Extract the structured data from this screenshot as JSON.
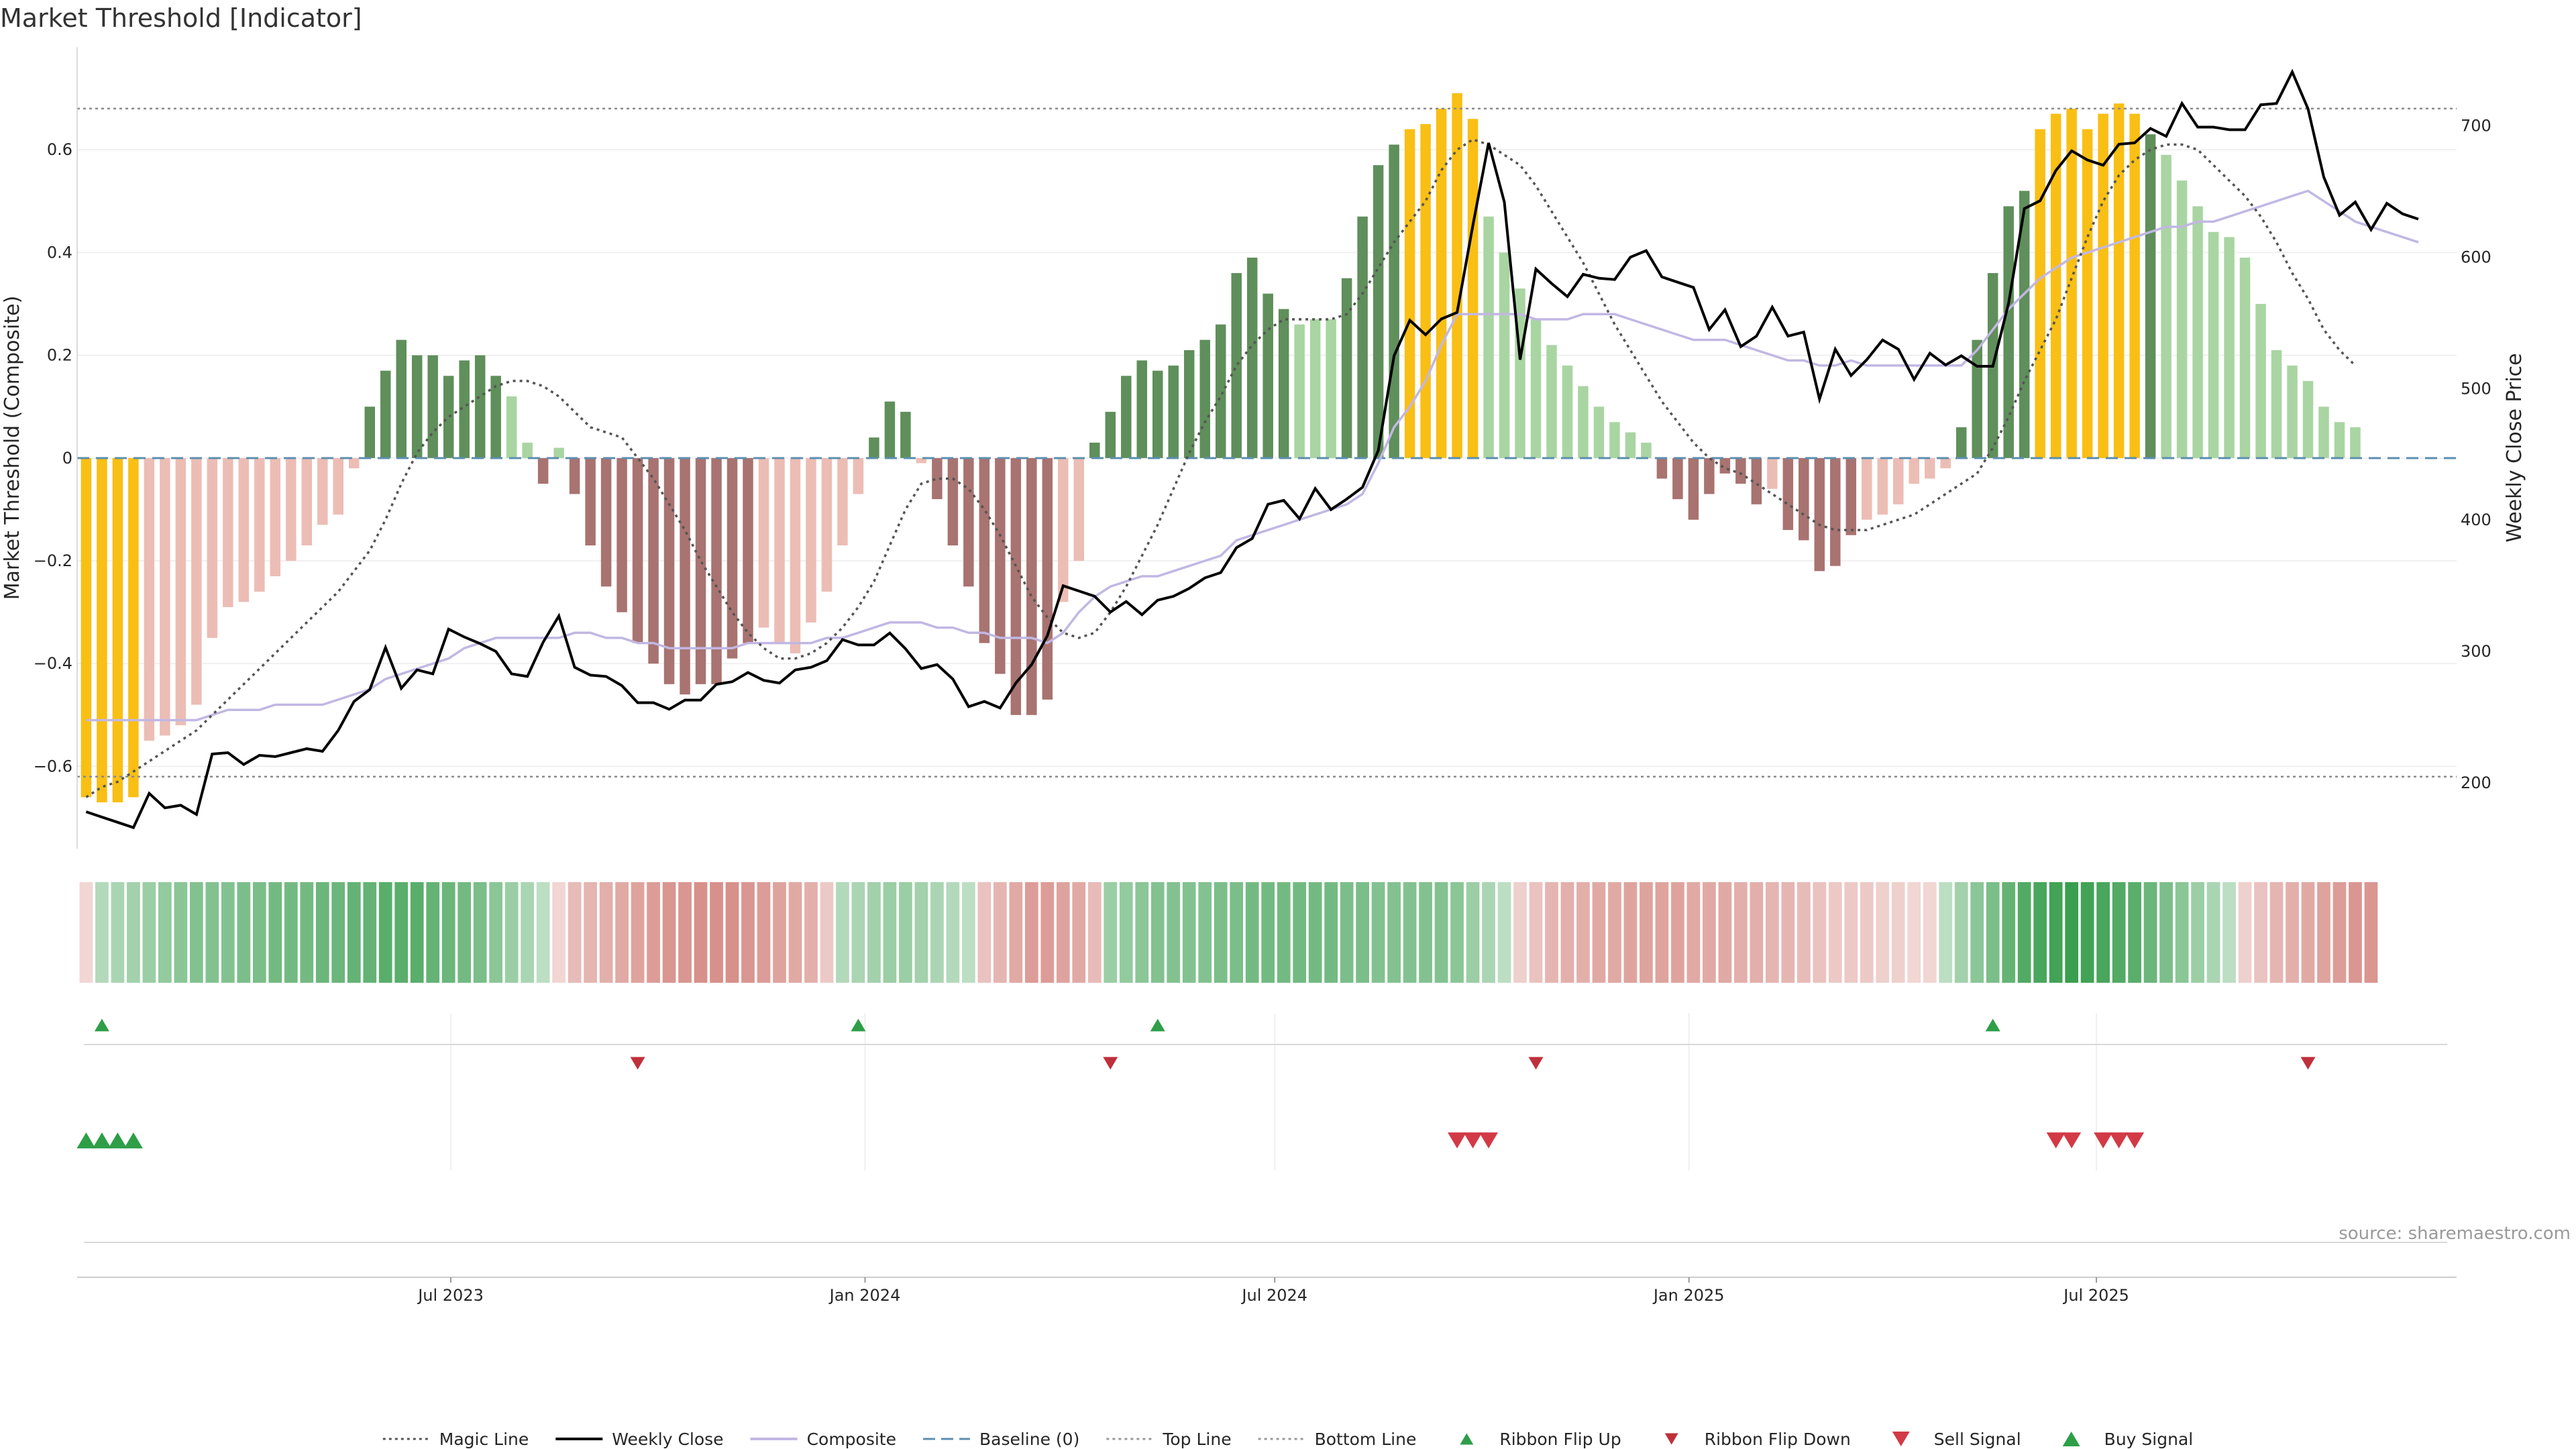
{
  "chart_data": {
    "type": "bar",
    "title": "Market Threshold [Indicator]",
    "ylabel": "Market Threshold (Composite)",
    "ylabel_right": "Weekly Close Price",
    "ylim": [
      -0.76,
      0.8
    ],
    "ylim_right": [
      150,
      760
    ],
    "yticks": [
      -0.6,
      -0.4,
      -0.2,
      0,
      0.2,
      0.4,
      0.6
    ],
    "yticks_right": [
      200,
      300,
      400,
      500,
      600,
      700
    ],
    "xlim": [
      "2023-01-16",
      "2025-12-08"
    ],
    "x_ticks": [
      {
        "date": "2023-07-01",
        "label": "Jul 2023"
      },
      {
        "date": "2024-01-01",
        "label": "Jan 2024"
      },
      {
        "date": "2024-07-01",
        "label": "Jul 2024"
      },
      {
        "date": "2025-01-01",
        "label": "Jan 2025"
      },
      {
        "date": "2025-07-01",
        "label": "Jul 2025"
      }
    ],
    "top_line": 0.68,
    "bottom_line": -0.62,
    "baseline": 0,
    "start_date": "2023-01-20",
    "composite": [
      -0.66,
      -0.67,
      -0.67,
      -0.66,
      -0.55,
      -0.54,
      -0.52,
      -0.48,
      -0.35,
      -0.29,
      -0.28,
      -0.26,
      -0.23,
      -0.2,
      -0.17,
      -0.13,
      -0.11,
      -0.02,
      0.1,
      0.17,
      0.23,
      0.2,
      0.2,
      0.16,
      0.19,
      0.2,
      0.16,
      0.12,
      0.03,
      -0.05,
      0.02,
      -0.07,
      -0.17,
      -0.25,
      -0.3,
      -0.36,
      -0.4,
      -0.44,
      -0.46,
      -0.44,
      -0.44,
      -0.39,
      -0.36,
      -0.33,
      -0.36,
      -0.38,
      -0.32,
      -0.26,
      -0.17,
      -0.07,
      0.04,
      0.11,
      0.09,
      -0.01,
      -0.08,
      -0.17,
      -0.25,
      -0.36,
      -0.42,
      -0.5,
      -0.5,
      -0.47,
      -0.28,
      -0.2,
      0.03,
      0.09,
      0.16,
      0.19,
      0.17,
      0.18,
      0.21,
      0.23,
      0.26,
      0.36,
      0.39,
      0.32,
      0.29,
      0.26,
      0.27,
      0.27,
      0.35,
      0.47,
      0.57,
      0.61,
      0.64,
      0.65,
      0.68,
      0.71,
      0.66,
      0.47,
      0.4,
      0.33,
      0.27,
      0.22,
      0.18,
      0.14,
      0.1,
      0.07,
      0.05,
      0.03,
      -0.04,
      -0.08,
      -0.12,
      -0.07,
      -0.03,
      -0.05,
      -0.09,
      -0.06,
      -0.14,
      -0.16,
      -0.22,
      -0.21,
      -0.15,
      -0.12,
      -0.11,
      -0.09,
      -0.05,
      -0.04,
      -0.02,
      0.06,
      0.23,
      0.36,
      0.49,
      0.52,
      0.64,
      0.67,
      0.68,
      0.64,
      0.67,
      0.69,
      0.67,
      0.63,
      0.59,
      0.54,
      0.49,
      0.44,
      0.43,
      0.39,
      0.3,
      0.21,
      0.18,
      0.15,
      0.1,
      0.07,
      0.06
    ],
    "composite_colors": {
      "strong_positive": "#5f8f5b",
      "weak_positive": "#a9d5a2",
      "strong_negative": "#a87370",
      "weak_negative": "#ecbdb5",
      "extreme": "#f9bf14"
    },
    "weekly_close": [
      178,
      174,
      170,
      166,
      192,
      181,
      183,
      176,
      222,
      223,
      214,
      221,
      220,
      223,
      226,
      224,
      240,
      262,
      271,
      303,
      272,
      286,
      283,
      317,
      311,
      306,
      300,
      283,
      281,
      307,
      327,
      288,
      282,
      281,
      274,
      261,
      261,
      256,
      263,
      263,
      275,
      277,
      284,
      278,
      276,
      286,
      288,
      293,
      309,
      305,
      305,
      314,
      302,
      287,
      290,
      279,
      258,
      262,
      257,
      276,
      290,
      312,
      350,
      346,
      342,
      330,
      338,
      328,
      339,
      342,
      348,
      356,
      360,
      379,
      386,
      412,
      415,
      401,
      424,
      408,
      416,
      425,
      453,
      525,
      552,
      541,
      553,
      558,
      624,
      687,
      642,
      522,
      591,
      580,
      570,
      587,
      584,
      583,
      600,
      605,
      585,
      581,
      577,
      545,
      560,
      532,
      540,
      562,
      540,
      543,
      492,
      530,
      510,
      522,
      537,
      530,
      507,
      527,
      518,
      525,
      517,
      517,
      565,
      637,
      643,
      666,
      681,
      674,
      670,
      686,
      687,
      698,
      692,
      717,
      699,
      699,
      697,
      697,
      716,
      717,
      741,
      713,
      661,
      632,
      642,
      621,
      641,
      633,
      629
    ],
    "magic_line": [
      -0.66,
      -0.64,
      -0.63,
      -0.61,
      -0.59,
      -0.57,
      -0.55,
      -0.53,
      -0.5,
      -0.47,
      -0.44,
      -0.41,
      -0.38,
      -0.35,
      -0.32,
      -0.29,
      -0.26,
      -0.22,
      -0.18,
      -0.12,
      -0.05,
      0.01,
      0.05,
      0.08,
      0.1,
      0.12,
      0.14,
      0.15,
      0.15,
      0.14,
      0.12,
      0.09,
      0.06,
      0.05,
      0.04,
      0.0,
      -0.04,
      -0.09,
      -0.14,
      -0.2,
      -0.25,
      -0.3,
      -0.34,
      -0.37,
      -0.39,
      -0.39,
      -0.38,
      -0.36,
      -0.33,
      -0.29,
      -0.24,
      -0.17,
      -0.1,
      -0.05,
      -0.04,
      -0.04,
      -0.06,
      -0.1,
      -0.15,
      -0.21,
      -0.27,
      -0.31,
      -0.34,
      -0.35,
      -0.34,
      -0.3,
      -0.25,
      -0.19,
      -0.13,
      -0.06,
      0.01,
      0.07,
      0.12,
      0.18,
      0.22,
      0.25,
      0.27,
      0.27,
      0.27,
      0.27,
      0.28,
      0.32,
      0.37,
      0.42,
      0.46,
      0.5,
      0.56,
      0.6,
      0.62,
      0.61,
      0.59,
      0.57,
      0.53,
      0.48,
      0.43,
      0.38,
      0.32,
      0.26,
      0.21,
      0.16,
      0.11,
      0.07,
      0.03,
      0.0,
      -0.02,
      -0.03,
      -0.05,
      -0.07,
      -0.09,
      -0.11,
      -0.13,
      -0.14,
      -0.14,
      -0.14,
      -0.13,
      -0.12,
      -0.11,
      -0.09,
      -0.07,
      -0.05,
      -0.03,
      0.02,
      0.08,
      0.15,
      0.21,
      0.27,
      0.35,
      0.43,
      0.5,
      0.55,
      0.58,
      0.6,
      0.61,
      0.61,
      0.6,
      0.57,
      0.54,
      0.51,
      0.47,
      0.42,
      0.36,
      0.31,
      0.25,
      0.21,
      0.18
    ],
    "composite_smooth": [
      -0.51,
      -0.51,
      -0.51,
      -0.51,
      -0.51,
      -0.51,
      -0.51,
      -0.51,
      -0.5,
      -0.49,
      -0.49,
      -0.49,
      -0.48,
      -0.48,
      -0.48,
      -0.48,
      -0.47,
      -0.46,
      -0.45,
      -0.43,
      -0.42,
      -0.41,
      -0.4,
      -0.39,
      -0.37,
      -0.36,
      -0.35,
      -0.35,
      -0.35,
      -0.35,
      -0.35,
      -0.34,
      -0.34,
      -0.35,
      -0.35,
      -0.36,
      -0.36,
      -0.37,
      -0.37,
      -0.37,
      -0.37,
      -0.37,
      -0.36,
      -0.36,
      -0.36,
      -0.36,
      -0.36,
      -0.35,
      -0.35,
      -0.34,
      -0.33,
      -0.32,
      -0.32,
      -0.32,
      -0.33,
      -0.33,
      -0.34,
      -0.34,
      -0.35,
      -0.35,
      -0.35,
      -0.36,
      -0.34,
      -0.3,
      -0.27,
      -0.25,
      -0.24,
      -0.23,
      -0.23,
      -0.22,
      -0.21,
      -0.2,
      -0.19,
      -0.16,
      -0.15,
      -0.14,
      -0.13,
      -0.12,
      -0.11,
      -0.1,
      -0.09,
      -0.07,
      -0.01,
      0.06,
      0.1,
      0.15,
      0.22,
      0.28,
      0.28,
      0.28,
      0.28,
      0.28,
      0.27,
      0.27,
      0.27,
      0.28,
      0.28,
      0.28,
      0.27,
      0.26,
      0.25,
      0.24,
      0.23,
      0.23,
      0.23,
      0.22,
      0.21,
      0.2,
      0.19,
      0.19,
      0.18,
      0.18,
      0.19,
      0.18,
      0.18,
      0.18,
      0.18,
      0.18,
      0.18,
      0.18,
      0.21,
      0.25,
      0.29,
      0.32,
      0.35,
      0.37,
      0.39,
      0.4,
      0.41,
      0.42,
      0.43,
      0.44,
      0.45,
      0.45,
      0.46,
      0.46,
      0.47,
      0.48,
      0.49,
      0.5,
      0.51,
      0.52,
      0.5,
      0.48,
      0.46,
      0.45,
      0.44,
      0.43,
      0.42
    ],
    "ribbon_values": [
      -0.1,
      0.25,
      0.3,
      0.35,
      0.4,
      0.45,
      0.5,
      0.55,
      0.55,
      0.55,
      0.6,
      0.6,
      0.65,
      0.65,
      0.65,
      0.7,
      0.7,
      0.75,
      0.75,
      0.8,
      0.8,
      0.8,
      0.75,
      0.7,
      0.65,
      0.6,
      0.5,
      0.4,
      0.3,
      0.2,
      -0.1,
      -0.3,
      -0.35,
      -0.4,
      -0.45,
      -0.5,
      -0.55,
      -0.6,
      -0.6,
      -0.65,
      -0.65,
      -0.65,
      -0.6,
      -0.55,
      -0.5,
      -0.45,
      -0.4,
      -0.2,
      0.25,
      0.3,
      0.35,
      0.4,
      0.4,
      0.35,
      0.3,
      0.25,
      0.2,
      -0.25,
      -0.35,
      -0.45,
      -0.55,
      -0.55,
      -0.5,
      -0.45,
      -0.3,
      0.4,
      0.45,
      0.5,
      0.55,
      0.55,
      0.55,
      0.55,
      0.6,
      0.6,
      0.65,
      0.65,
      0.65,
      0.65,
      0.65,
      0.65,
      0.6,
      0.6,
      0.55,
      0.55,
      0.55,
      0.55,
      0.55,
      0.5,
      0.4,
      0.3,
      0.2,
      -0.15,
      -0.25,
      -0.35,
      -0.4,
      -0.4,
      -0.45,
      -0.45,
      -0.5,
      -0.5,
      -0.5,
      -0.5,
      -0.45,
      -0.45,
      -0.45,
      -0.4,
      -0.4,
      -0.35,
      -0.35,
      -0.3,
      -0.25,
      -0.2,
      -0.2,
      -0.2,
      -0.15,
      -0.15,
      -0.1,
      -0.1,
      0.2,
      0.35,
      0.5,
      0.6,
      0.75,
      0.85,
      0.9,
      0.95,
      1.0,
      0.95,
      0.9,
      0.85,
      0.8,
      0.7,
      0.6,
      0.5,
      0.4,
      0.3,
      0.2,
      -0.15,
      -0.25,
      -0.35,
      -0.4,
      -0.45,
      -0.5,
      -0.55,
      -0.6,
      -0.6
    ],
    "ribbon_colors": {
      "positive": "#3a9e4f",
      "negative": "#c8625a"
    },
    "ribbon_flip_up": [
      "2023-01-27",
      "2023-12-29",
      "2024-05-10",
      "2025-05-16"
    ],
    "ribbon_flip_down": [
      "2023-09-22",
      "2024-04-19",
      "2024-10-25",
      "2025-10-03"
    ],
    "buy_signals": [
      "2023-01-20",
      "2023-01-27",
      "2023-02-03",
      "2023-02-10"
    ],
    "sell_signals": [
      "2024-09-20",
      "2024-09-27",
      "2024-10-04",
      "2025-06-13",
      "2025-06-20",
      "2025-07-04",
      "2025-07-11",
      "2025-07-18"
    ],
    "legend": [
      {
        "label": "Magic Line",
        "kind": "line",
        "style": "dotted",
        "color": "#555555"
      },
      {
        "label": "Weekly Close",
        "kind": "line",
        "style": "solid",
        "color": "#000000"
      },
      {
        "label": "Composite",
        "kind": "line",
        "style": "solid",
        "color": "#c1b7e3"
      },
      {
        "label": "Baseline (0)",
        "kind": "line",
        "style": "dashed",
        "color": "#5d8fb0"
      },
      {
        "label": "Top Line",
        "kind": "line",
        "style": "dotted",
        "color": "#999999"
      },
      {
        "label": "Bottom Line",
        "kind": "line",
        "style": "dotted",
        "color": "#999999"
      },
      {
        "label": "Ribbon Flip Up",
        "kind": "marker",
        "shape": "triangle-up",
        "color": "#2e9e47"
      },
      {
        "label": "Ribbon Flip Down",
        "kind": "marker",
        "shape": "triangle-down",
        "color": "#c0303a"
      },
      {
        "label": "Sell Signal",
        "kind": "marker",
        "shape": "triangle-down",
        "color": "#d23a46"
      },
      {
        "label": "Buy Signal",
        "kind": "marker",
        "shape": "triangle-up",
        "color": "#2e9e47"
      }
    ],
    "legend_position": "bottom-center",
    "grid": true,
    "source": "source: sharemaestro.com"
  }
}
